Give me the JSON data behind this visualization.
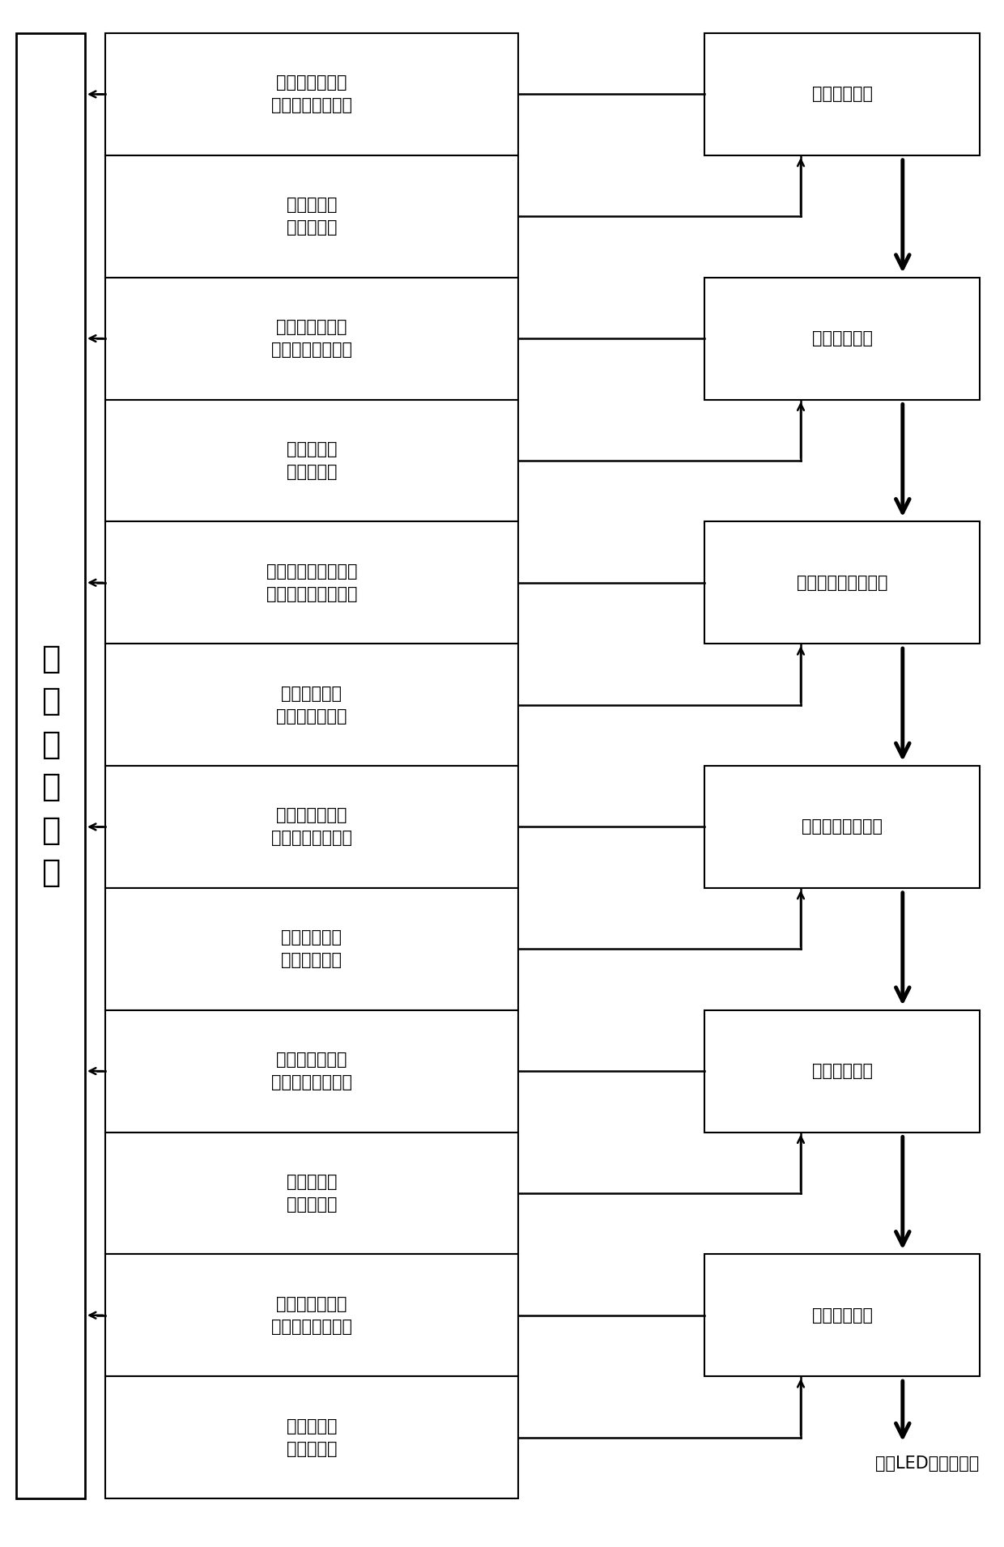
{
  "fig_width": 12.4,
  "fig_height": 19.11,
  "bg_color": "#ffffff",
  "box_color": "#ffffff",
  "box_edge": "#000000",
  "text_color": "#000000",
  "central_label": "中\n央\n控\n制\n装\n置",
  "left_boxes": [
    "工序检测单元的\n浆料混合传感装置",
    "浆料混合工\n序驱动单元",
    "工序检测单元的\n双辊滚压传感装置",
    "双辊滚压工\n序驱动单元",
    "工序检测单元的滚压\n定形和裁切传感装置",
    "滚压定形和裁\n切工序驱动单元",
    "工序检测单元的\n滚压贴合传感装置",
    "滚压贴合成型\n工序驱动单元",
    "工序检测单元的\n降温固化传感装置",
    "固化成型工\n序驱动单元",
    "工序检测单元的\n拉伸扩膜传感装置",
    "拉伸扩膜工\n序驱动单元"
  ],
  "right_boxes": [
    "浆料混合工序",
    "双辊滚压工序",
    "滚压定形和裁切工序",
    "滚压贴合成型工序",
    "固化成型工序",
    "拉伸扩膜工序"
  ],
  "bottom_label": "成品LED封装体元件",
  "sensor_rows": [
    0,
    2,
    4,
    6,
    8,
    10
  ],
  "driver_rows": [
    1,
    3,
    5,
    7,
    9,
    11
  ]
}
